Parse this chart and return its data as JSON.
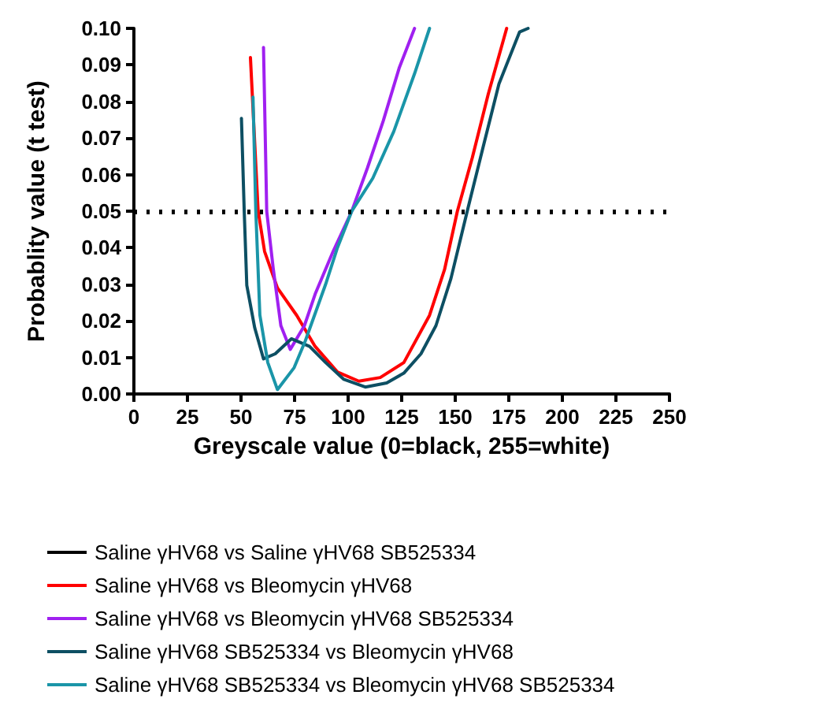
{
  "chart_data": {
    "type": "line",
    "xlabel": "Greyscale value (0=black, 255=white)",
    "ylabel": "Probablity value (t test)",
    "xlim": [
      0,
      250
    ],
    "xticks": [
      0,
      25,
      50,
      75,
      100,
      125,
      150,
      175,
      200,
      225,
      250
    ],
    "ylim": [
      0,
      0.1
    ],
    "yticks": [
      {
        "value": 0,
        "label": "0.00"
      },
      {
        "value": 0.01,
        "label": "0.01"
      },
      {
        "value": 0.02,
        "label": "0.02"
      },
      {
        "value": 0.03,
        "label": "0.03"
      },
      {
        "value": 0.04,
        "label": "0.04"
      },
      {
        "value": 0.05,
        "label": "0.05"
      },
      {
        "value": 0.06,
        "label": "0.06"
      },
      {
        "value": 0.07,
        "label": "0.07"
      },
      {
        "value": 0.08,
        "label": "0.08"
      },
      {
        "value": 0.09,
        "label": "0.09"
      },
      {
        "value": 0.1,
        "label": "0.10"
      }
    ],
    "grid": false,
    "legend": "bottom",
    "marker": "none",
    "line_style": "solid",
    "ref_lines": [
      {
        "axis": "y",
        "value": 0.05,
        "color": "#000000",
        "line_style": "dotted"
      }
    ],
    "series": [
      {
        "name": "Saline γHV68 vs Saline γHV68 SB525334",
        "color": "#000000"
      },
      {
        "name": "Saline γHV68 vs Bleomycin γHV68",
        "color": "#ff0000",
        "x": [
          54.4,
          58,
          61,
          67,
          76,
          84.6,
          95,
          105,
          115,
          126,
          138,
          145,
          151,
          158,
          165.4,
          174
        ],
        "values": [
          0.092,
          0.05,
          0.039,
          0.029,
          0.0215,
          0.013,
          0.006,
          0.0035,
          0.0045,
          0.0086,
          0.0215,
          0.034,
          0.05,
          0.0647,
          0.082,
          0.1
        ]
      },
      {
        "name": "Saline γHV68 vs Bleomycin γHV68 SB525334",
        "color": "#a020f0",
        "x": [
          60.5,
          62,
          65,
          68.6,
          73,
          79.6,
          84.6,
          93,
          101.7,
          109,
          116.4,
          123.8,
          131
        ],
        "values": [
          0.0948,
          0.05,
          0.0345,
          0.0187,
          0.0122,
          0.0187,
          0.0273,
          0.039,
          0.05,
          0.0618,
          0.0747,
          0.0891,
          0.1
        ]
      },
      {
        "name": "Saline γHV68 SB525334 vs Bleomycin γHV68",
        "color": "#0d4f63",
        "x": [
          50.2,
          51.5,
          52.7,
          56.4,
          60.5,
          66,
          73.5,
          82,
          89.5,
          98,
          108,
          118,
          126,
          134,
          141,
          148,
          155.6,
          163,
          170.4,
          180,
          184
        ],
        "values": [
          0.0754,
          0.05,
          0.0297,
          0.0181,
          0.0096,
          0.011,
          0.0151,
          0.013,
          0.0086,
          0.004,
          0.0019,
          0.003,
          0.0057,
          0.011,
          0.0187,
          0.0316,
          0.05,
          0.0675,
          0.0848,
          0.099,
          0.1
        ]
      },
      {
        "name": "Saline γHV68 SB525334 vs Bleomycin γHV68 SB525334",
        "color": "#1a95a8",
        "x": [
          55.6,
          56.9,
          58.8,
          62.5,
          67,
          74.8,
          80,
          89.5,
          95,
          101.7,
          111.5,
          121.3,
          131,
          138
        ],
        "values": [
          0.0812,
          0.05,
          0.0216,
          0.0086,
          0.0012,
          0.0072,
          0.0145,
          0.03,
          0.04,
          0.05,
          0.059,
          0.0718,
          0.0876,
          0.1
        ]
      }
    ]
  }
}
